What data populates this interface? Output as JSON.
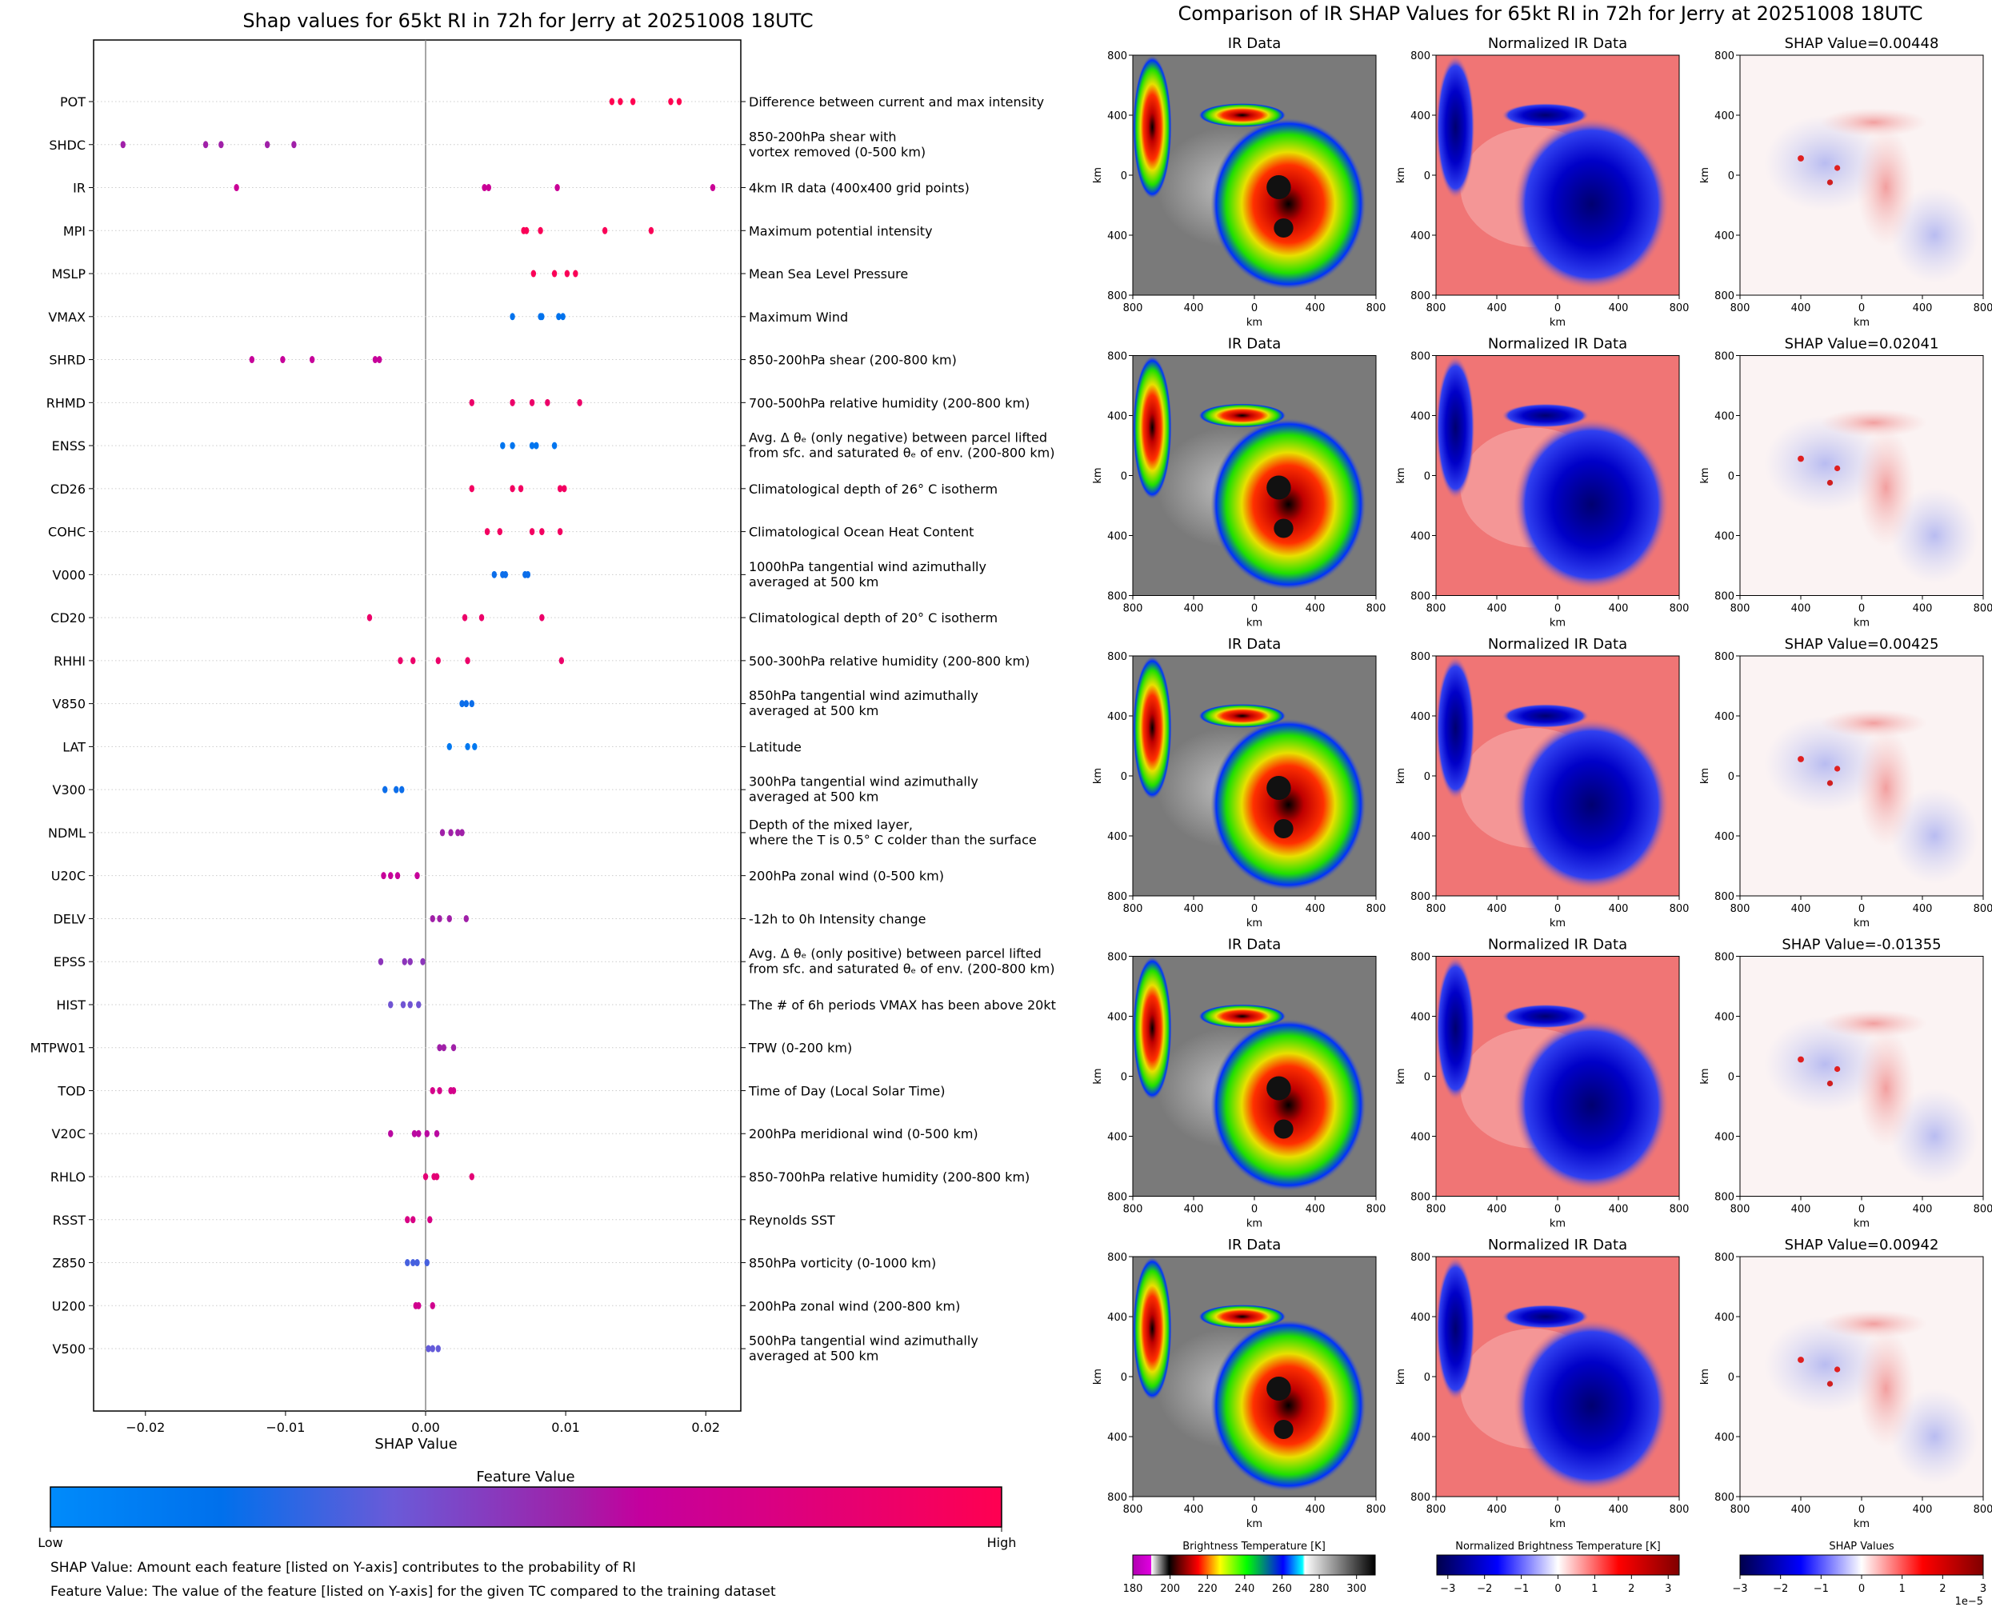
{
  "chart_data": [
    {
      "type": "scatter",
      "title": "Shap values for 65kt RI in 72h for Jerry at 20251008 18UTC",
      "xlabel": "SHAP Value",
      "xlim": [
        -0.0237,
        0.0225
      ],
      "xticks": [
        -0.02,
        -0.01,
        0.0,
        0.01,
        0.02
      ],
      "xtick_labels": [
        "−0.02",
        "−0.01",
        "0.00",
        "0.01",
        "0.02"
      ],
      "grid": "horizontal dotted",
      "features": [
        {
          "name": "POT",
          "description": [
            "Difference between current and max intensity"
          ],
          "feature_value": 1.0,
          "shap_values": [
            0.0133,
            0.0139,
            0.0148,
            0.0175,
            0.0181
          ]
        },
        {
          "name": "SHDC",
          "description": [
            "850-200hPa shear with",
            "vortex removed (0-500 km)"
          ],
          "feature_value": 0.55,
          "shap_values": [
            -0.0216,
            -0.0157,
            -0.0146,
            -0.0113,
            -0.0094
          ]
        },
        {
          "name": "IR",
          "description": [
            "4km IR data (400x400 grid points)"
          ],
          "feature_value": 0.66,
          "shap_values": [
            -0.0135,
            0.0042,
            0.0045,
            0.0094,
            0.0205
          ]
        },
        {
          "name": "MPI",
          "description": [
            "Maximum potential intensity"
          ],
          "feature_value": 0.97,
          "shap_values": [
            0.007,
            0.0072,
            0.0082,
            0.0128,
            0.0161
          ]
        },
        {
          "name": "MSLP",
          "description": [
            "Mean Sea Level Pressure"
          ],
          "feature_value": 0.97,
          "shap_values": [
            0.0077,
            0.0092,
            0.0101,
            0.0107
          ]
        },
        {
          "name": "VMAX",
          "description": [
            "Maximum Wind"
          ],
          "feature_value": 0.17,
          "shap_values": [
            0.0062,
            0.0082,
            0.0083,
            0.0095,
            0.0098
          ]
        },
        {
          "name": "SHRD",
          "description": [
            "850-200hPa shear (200-800 km)"
          ],
          "feature_value": 0.64,
          "shap_values": [
            -0.0124,
            -0.0102,
            -0.0081,
            -0.0036,
            -0.0033
          ]
        },
        {
          "name": "RHMD",
          "description": [
            "700-500hPa relative humidity (200-800 km)"
          ],
          "feature_value": 0.88,
          "shap_values": [
            0.0033,
            0.0062,
            0.0076,
            0.0087,
            0.011
          ]
        },
        {
          "name": "ENSS",
          "description": [
            "Avg. Δ θₑ (only negative) between parcel lifted",
            "from sfc. and saturated θₑ of env. (200-800 km)"
          ],
          "feature_value": 0.15,
          "shap_values": [
            0.0055,
            0.0062,
            0.0076,
            0.0079,
            0.0092
          ]
        },
        {
          "name": "CD26",
          "description": [
            "Climatological depth of 26° C isotherm"
          ],
          "feature_value": 0.92,
          "shap_values": [
            0.0033,
            0.0062,
            0.0068,
            0.0096,
            0.0099
          ]
        },
        {
          "name": "COHC",
          "description": [
            "Climatological Ocean Heat Content"
          ],
          "feature_value": 0.92,
          "shap_values": [
            0.0044,
            0.0053,
            0.0076,
            0.0083,
            0.0096
          ]
        },
        {
          "name": "V000",
          "description": [
            "1000hPa tangential wind azimuthally",
            "averaged at 500 km"
          ],
          "feature_value": 0.2,
          "shap_values": [
            0.0049,
            0.0055,
            0.0057,
            0.0071,
            0.0073
          ]
        },
        {
          "name": "CD20",
          "description": [
            "Climatological depth of 20° C isotherm"
          ],
          "feature_value": 0.88,
          "shap_values": [
            -0.004,
            0.0028,
            0.004,
            0.0083
          ]
        },
        {
          "name": "RHHI",
          "description": [
            "500-300hPa relative humidity (200-800 km)"
          ],
          "feature_value": 0.88,
          "shap_values": [
            -0.0018,
            -0.0009,
            0.0009,
            0.003,
            0.0097
          ]
        },
        {
          "name": "V850",
          "description": [
            "850hPa tangential wind azimuthally",
            "averaged at 500 km"
          ],
          "feature_value": 0.2,
          "shap_values": [
            0.0026,
            0.0029,
            0.0033
          ]
        },
        {
          "name": "LAT",
          "description": [
            "Latitude"
          ],
          "feature_value": 0.12,
          "shap_values": [
            0.0017,
            0.003,
            0.0035
          ]
        },
        {
          "name": "V300",
          "description": [
            "300hPa tangential wind azimuthally",
            "averaged at 500 km"
          ],
          "feature_value": 0.2,
          "shap_values": [
            -0.0029,
            -0.0021,
            -0.0017
          ]
        },
        {
          "name": "NDML",
          "description": [
            "Depth of the mixed layer,",
            "where the T is 0.5° C colder than the surface"
          ],
          "feature_value": 0.55,
          "shap_values": [
            0.0012,
            0.0018,
            0.0023,
            0.0026
          ]
        },
        {
          "name": "U20C",
          "description": [
            "200hPa zonal wind (0-500 km)"
          ],
          "feature_value": 0.64,
          "shap_values": [
            -0.003,
            -0.0025,
            -0.002,
            -0.0006
          ]
        },
        {
          "name": "DELV",
          "description": [
            "-12h to 0h Intensity change"
          ],
          "feature_value": 0.55,
          "shap_values": [
            0.0005,
            0.001,
            0.0017,
            0.0029
          ]
        },
        {
          "name": "EPSS",
          "description": [
            "Avg. Δ θₑ (only positive) between parcel lifted",
            "from sfc. and saturated θₑ of env. (200-800 km)"
          ],
          "feature_value": 0.48,
          "shap_values": [
            -0.0032,
            -0.0015,
            -0.0011,
            -0.0002
          ]
        },
        {
          "name": "HIST",
          "description": [
            "The # of 6h periods VMAX has been above 20kt"
          ],
          "feature_value": 0.38,
          "shap_values": [
            -0.0025,
            -0.0016,
            -0.0011,
            -0.0005
          ]
        },
        {
          "name": "MTPW01",
          "description": [
            "TPW (0-200 km)"
          ],
          "feature_value": 0.55,
          "shap_values": [
            0.001,
            0.0013,
            0.002
          ]
        },
        {
          "name": "TOD",
          "description": [
            "Time of Day (Local Solar Time)"
          ],
          "feature_value": 0.72,
          "shap_values": [
            0.0005,
            0.001,
            0.0018,
            0.002
          ]
        },
        {
          "name": "V20C",
          "description": [
            "200hPa meridional wind (0-500 km)"
          ],
          "feature_value": 0.6,
          "shap_values": [
            -0.0025,
            -0.0008,
            -0.0005,
            0.0001,
            0.0008
          ]
        },
        {
          "name": "RHLO",
          "description": [
            "850-700hPa relative humidity (200-800 km)"
          ],
          "feature_value": 0.82,
          "shap_values": [
            0.0,
            0.0006,
            0.0008,
            0.0033
          ]
        },
        {
          "name": "RSST",
          "description": [
            "Reynolds SST"
          ],
          "feature_value": 0.75,
          "shap_values": [
            -0.0013,
            -0.0009,
            0.0003
          ]
        },
        {
          "name": "Z850",
          "description": [
            "850hPa vorticity (0-1000 km)"
          ],
          "feature_value": 0.3,
          "shap_values": [
            -0.0013,
            -0.0009,
            -0.0006,
            0.0001
          ]
        },
        {
          "name": "U200",
          "description": [
            "200hPa zonal wind (200-800 km)"
          ],
          "feature_value": 0.7,
          "shap_values": [
            -0.0007,
            -0.0005,
            0.0005
          ]
        },
        {
          "name": "V500",
          "description": [
            "500hPa tangential wind azimuthally",
            "averaged at 500 km"
          ],
          "feature_value": 0.35,
          "shap_values": [
            0.0002,
            0.0005,
            0.0009
          ]
        }
      ],
      "colorbar": {
        "title": "Feature Value",
        "low_label": "Low",
        "high_label": "High",
        "colors": [
          "#008bfb",
          "#0070ec",
          "#6a5ad8",
          "#a020a8",
          "#c4009e",
          "#ff0051"
        ]
      },
      "notes": [
        "SHAP Value: Amount each feature [listed on Y-axis] contributes to the probability of RI",
        "Feature Value: The value of the feature [listed on Y-axis] for the given TC compared to the training dataset"
      ]
    },
    {
      "type": "heatmap",
      "title": "Comparison of IR SHAP Values for 65kt RI in 72h for Jerry at 20251008 18UTC",
      "column_titles": [
        "IR Data",
        "Normalized IR Data"
      ],
      "shap_titles": [
        "SHAP Value=0.00448",
        "SHAP Value=0.02041",
        "SHAP Value=0.00425",
        "SHAP Value=-0.01355",
        "SHAP Value=0.00942"
      ],
      "xlabel": "km",
      "ylabel": "km",
      "xtick_labels": [
        "800",
        "400",
        "0",
        "400",
        "800"
      ],
      "ytick_labels": [
        "800",
        "400",
        "0",
        "400",
        "800"
      ],
      "colorbars": [
        {
          "title": "Brightness Temperature [K]",
          "range": [
            180,
            310
          ],
          "ticks": [
            "180",
            "200",
            "220",
            "240",
            "260",
            "280",
            "300"
          ],
          "tick_values": [
            180,
            200,
            220,
            240,
            260,
            280,
            300
          ]
        },
        {
          "title": "Normalized Brightness Temperature [K]",
          "range": [
            -3.3,
            3.3
          ],
          "ticks": [
            "−3",
            "−2",
            "−1",
            "0",
            "1",
            "2",
            "3"
          ],
          "tick_values": [
            -3,
            -2,
            -1,
            0,
            1,
            2,
            3
          ]
        },
        {
          "title": "SHAP Values",
          "range": [
            -3,
            3
          ],
          "ticks": [
            "−3",
            "−2",
            "−1",
            "0",
            "1",
            "2",
            "3"
          ],
          "tick_values": [
            -3,
            -2,
            -1,
            0,
            1,
            2,
            3
          ],
          "offset_label": "1e−5"
        }
      ]
    }
  ]
}
